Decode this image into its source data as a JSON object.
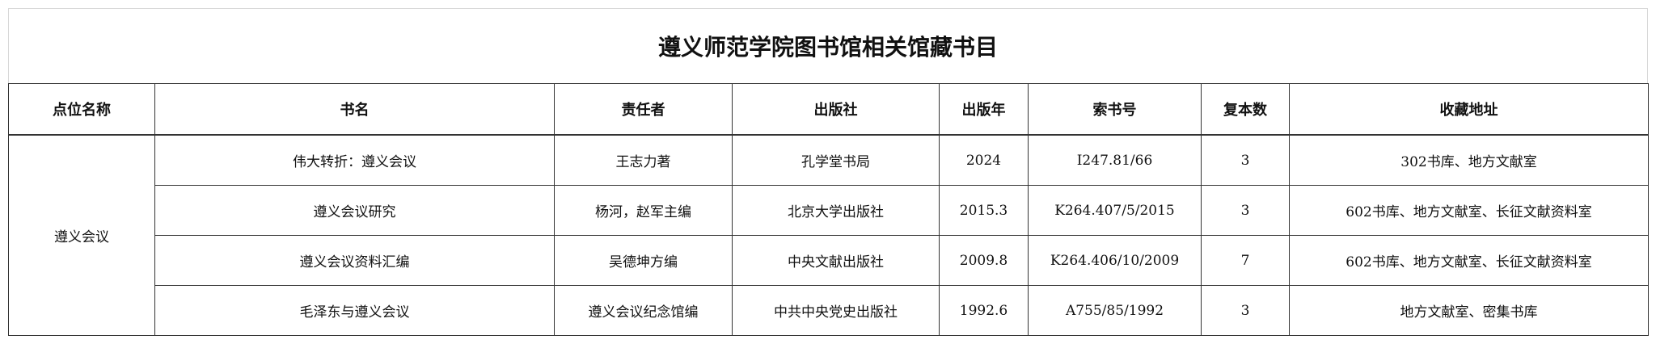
{
  "title": "遵义师范学院图书馆相关馆藏书目",
  "columns": [
    "点位名称",
    "书名",
    "责任者",
    "出版社",
    "出版年",
    "索书号",
    "复本数",
    "收藏地址"
  ],
  "location": "遵义会议",
  "rows": [
    {
      "title": "伟大转折：遵义会议",
      "author": "王志力著",
      "publisher": "孔学堂书局",
      "year": "2024",
      "call_no": "I247.81/66",
      "copies": "3",
      "address": "302书库、地方文献室"
    },
    {
      "title": "遵义会议研究",
      "author": "杨河，赵军主编",
      "publisher": "北京大学出版社",
      "year": "2015.3",
      "call_no": "K264.407/5/2015",
      "copies": "3",
      "address": "602书库、地方文献室、长征文献资料室"
    },
    {
      "title": "遵义会议资料汇编",
      "author": "吴德坤方编",
      "publisher": "中央文献出版社",
      "year": "2009.8",
      "call_no": "K264.406/10/2009",
      "copies": "7",
      "address": "602书库、地方文献室、长征文献资料室"
    },
    {
      "title": "毛泽东与遵义会议",
      "author": "遵义会议纪念馆编",
      "publisher": "中共中央党史出版社",
      "year": "1992.6",
      "call_no": "A755/85/1992",
      "copies": "3",
      "address": "地方文献室、密集书库"
    }
  ]
}
